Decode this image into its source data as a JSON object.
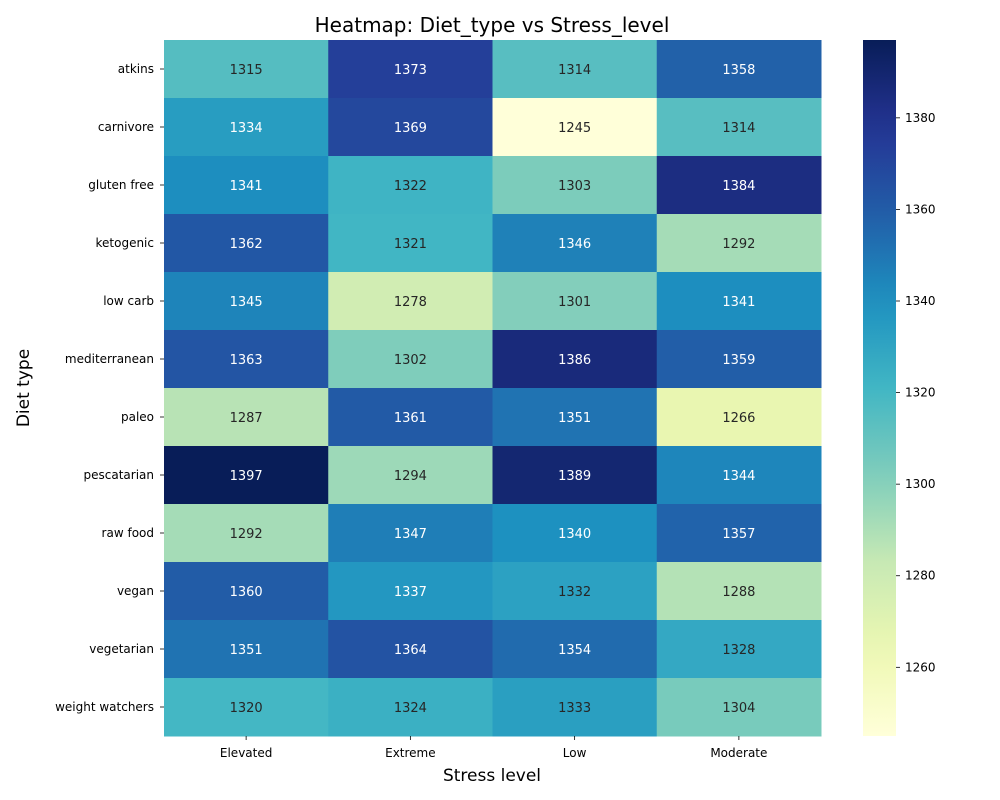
{
  "chart_data": {
    "type": "heatmap",
    "title": "Heatmap: Diet_type vs Stress_level",
    "xlabel": "Stress level",
    "ylabel": "Diet type",
    "x_categories": [
      "Elevated",
      "Extreme",
      "Low",
      "Moderate"
    ],
    "y_categories": [
      "atkins",
      "carnivore",
      "gluten free",
      "ketogenic",
      "low carb",
      "mediterranean",
      "paleo",
      "pescatarian",
      "raw food",
      "vegan",
      "vegetarian",
      "weight watchers"
    ],
    "values": [
      [
        1315,
        1373,
        1314,
        1358
      ],
      [
        1334,
        1369,
        1245,
        1314
      ],
      [
        1341,
        1322,
        1303,
        1384
      ],
      [
        1362,
        1321,
        1346,
        1292
      ],
      [
        1345,
        1278,
        1301,
        1341
      ],
      [
        1363,
        1302,
        1386,
        1359
      ],
      [
        1287,
        1361,
        1351,
        1266
      ],
      [
        1397,
        1294,
        1389,
        1344
      ],
      [
        1292,
        1347,
        1340,
        1357
      ],
      [
        1360,
        1337,
        1332,
        1288
      ],
      [
        1351,
        1364,
        1354,
        1328
      ],
      [
        1320,
        1324,
        1333,
        1304
      ]
    ],
    "colormap": "YlGnBu",
    "colorbar": {
      "range": [
        1245,
        1397
      ],
      "ticks": [
        1260,
        1280,
        1300,
        1320,
        1340,
        1360,
        1380
      ]
    },
    "annotations": true
  }
}
